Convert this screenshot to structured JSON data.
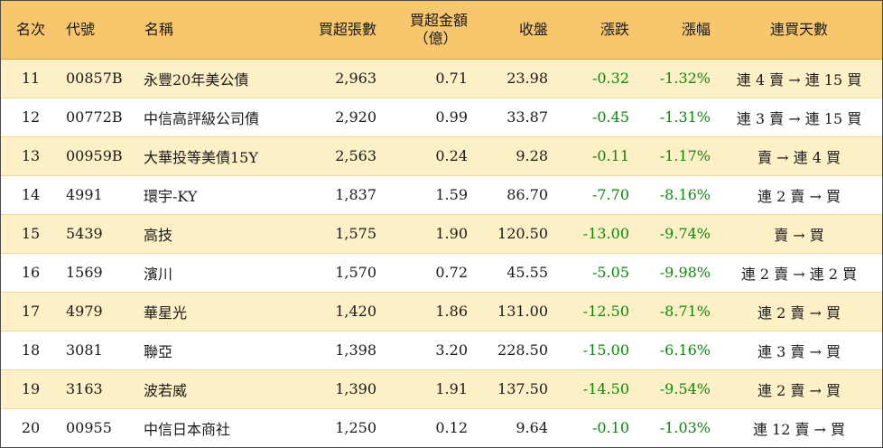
{
  "headers": {
    "rank": "名次",
    "code": "代號",
    "name": "名稱",
    "net_buy_lots": "買超張數",
    "net_buy_amount": "買超金額",
    "net_buy_amount_unit": "（億）",
    "close": "收盤",
    "change": "漲跌",
    "change_pct": "漲幅",
    "streak": "連買天數"
  },
  "colors": {
    "header_bg": "#f7c66d",
    "odd_row_bg": "#fdefc6",
    "negative": "#0a8a0a"
  },
  "rows": [
    {
      "rank": "11",
      "code": "00857B",
      "name": "永豐20年美公債",
      "lots": "2,963",
      "amount": "0.71",
      "close": "23.98",
      "change": "-0.32",
      "pct": "-1.32%",
      "streak": "連 4 賣 → 連 15 買"
    },
    {
      "rank": "12",
      "code": "00772B",
      "name": "中信高評級公司債",
      "lots": "2,920",
      "amount": "0.99",
      "close": "33.87",
      "change": "-0.45",
      "pct": "-1.31%",
      "streak": "連 3 賣 → 連 15 買"
    },
    {
      "rank": "13",
      "code": "00959B",
      "name": "大華投等美債15Y",
      "lots": "2,563",
      "amount": "0.24",
      "close": "9.28",
      "change": "-0.11",
      "pct": "-1.17%",
      "streak": "賣 → 連 4 買"
    },
    {
      "rank": "14",
      "code": "4991",
      "name": "環宇-KY",
      "lots": "1,837",
      "amount": "1.59",
      "close": "86.70",
      "change": "-7.70",
      "pct": "-8.16%",
      "streak": "連 2 賣 → 買"
    },
    {
      "rank": "15",
      "code": "5439",
      "name": "高技",
      "lots": "1,575",
      "amount": "1.90",
      "close": "120.50",
      "change": "-13.00",
      "pct": "-9.74%",
      "streak": "賣 → 買"
    },
    {
      "rank": "16",
      "code": "1569",
      "name": "濱川",
      "lots": "1,570",
      "amount": "0.72",
      "close": "45.55",
      "change": "-5.05",
      "pct": "-9.98%",
      "streak": "連 2 賣 → 連 2 買"
    },
    {
      "rank": "17",
      "code": "4979",
      "name": "華星光",
      "lots": "1,420",
      "amount": "1.86",
      "close": "131.00",
      "change": "-12.50",
      "pct": "-8.71%",
      "streak": "連 2 賣 → 買"
    },
    {
      "rank": "18",
      "code": "3081",
      "name": "聯亞",
      "lots": "1,398",
      "amount": "3.20",
      "close": "228.50",
      "change": "-15.00",
      "pct": "-6.16%",
      "streak": "連 3 賣 → 買"
    },
    {
      "rank": "19",
      "code": "3163",
      "name": "波若威",
      "lots": "1,390",
      "amount": "1.91",
      "close": "137.50",
      "change": "-14.50",
      "pct": "-9.54%",
      "streak": "連 2 賣 → 買"
    },
    {
      "rank": "20",
      "code": "00955",
      "name": "中信日本商社",
      "lots": "1,250",
      "amount": "0.12",
      "close": "9.64",
      "change": "-0.10",
      "pct": "-1.03%",
      "streak": "連 12 賣 → 買"
    }
  ]
}
